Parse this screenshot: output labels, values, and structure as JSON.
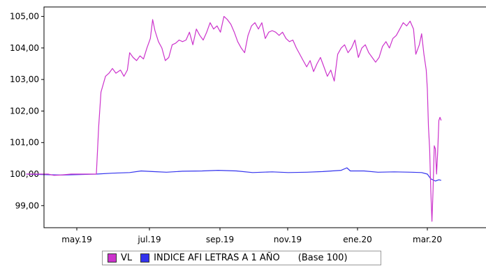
{
  "chart_data": {
    "type": "line",
    "xlabel": "",
    "ylabel": "",
    "ylim": [
      98.3,
      105.3
    ],
    "x_ticks": [
      "may.19",
      "jul.19",
      "sep.19",
      "nov.19",
      "ene.20",
      "mar.20"
    ],
    "y_ticks": [
      "99,00",
      "100,00",
      "101,00",
      "102,00",
      "103,00",
      "104,00",
      "105,00"
    ],
    "legend_placement": "bottom",
    "legend_note": "(Base 100)",
    "grid": false,
    "series": [
      {
        "name": "VL",
        "color": "#cc33cc",
        "points": [
          [
            "2019-04-01",
            100.0
          ],
          [
            "2019-04-20",
            100.0
          ],
          [
            "2019-04-25",
            99.96
          ],
          [
            "2019-05-01",
            99.97
          ],
          [
            "2019-05-10",
            100.0
          ],
          [
            "2019-05-20",
            100.0
          ],
          [
            "2019-06-01",
            100.0
          ],
          [
            "2019-06-03",
            101.5
          ],
          [
            "2019-06-05",
            102.6
          ],
          [
            "2019-06-09",
            103.1
          ],
          [
            "2019-06-12",
            103.2
          ],
          [
            "2019-06-15",
            103.35
          ],
          [
            "2019-06-18",
            103.2
          ],
          [
            "2019-06-22",
            103.3
          ],
          [
            "2019-06-25",
            103.1
          ],
          [
            "2019-06-28",
            103.3
          ],
          [
            "2019-06-30",
            103.85
          ],
          [
            "2019-07-03",
            103.7
          ],
          [
            "2019-07-06",
            103.6
          ],
          [
            "2019-07-09",
            103.75
          ],
          [
            "2019-07-12",
            103.65
          ],
          [
            "2019-07-15",
            104.0
          ],
          [
            "2019-07-18",
            104.3
          ],
          [
            "2019-07-20",
            104.9
          ],
          [
            "2019-07-22",
            104.55
          ],
          [
            "2019-07-25",
            104.2
          ],
          [
            "2019-07-28",
            104.0
          ],
          [
            "2019-07-31",
            103.6
          ],
          [
            "2019-08-03",
            103.7
          ],
          [
            "2019-08-06",
            104.1
          ],
          [
            "2019-08-09",
            104.15
          ],
          [
            "2019-08-12",
            104.25
          ],
          [
            "2019-08-15",
            104.2
          ],
          [
            "2019-08-18",
            104.25
          ],
          [
            "2019-08-21",
            104.5
          ],
          [
            "2019-08-24",
            104.1
          ],
          [
            "2019-08-27",
            104.6
          ],
          [
            "2019-08-30",
            104.4
          ],
          [
            "2019-09-02",
            104.25
          ],
          [
            "2019-09-05",
            104.5
          ],
          [
            "2019-09-08",
            104.8
          ],
          [
            "2019-09-11",
            104.6
          ],
          [
            "2019-09-14",
            104.7
          ],
          [
            "2019-09-17",
            104.5
          ],
          [
            "2019-09-20",
            105.0
          ],
          [
            "2019-09-23",
            104.9
          ],
          [
            "2019-09-26",
            104.75
          ],
          [
            "2019-09-29",
            104.5
          ],
          [
            "2019-10-02",
            104.2
          ],
          [
            "2019-10-05",
            104.0
          ],
          [
            "2019-10-08",
            103.85
          ],
          [
            "2019-10-11",
            104.4
          ],
          [
            "2019-10-14",
            104.7
          ],
          [
            "2019-10-17",
            104.8
          ],
          [
            "2019-10-20",
            104.6
          ],
          [
            "2019-10-23",
            104.8
          ],
          [
            "2019-10-26",
            104.3
          ],
          [
            "2019-10-29",
            104.5
          ],
          [
            "2019-11-01",
            104.55
          ],
          [
            "2019-11-04",
            104.5
          ],
          [
            "2019-11-07",
            104.4
          ],
          [
            "2019-11-10",
            104.5
          ],
          [
            "2019-11-13",
            104.3
          ],
          [
            "2019-11-16",
            104.2
          ],
          [
            "2019-11-19",
            104.25
          ],
          [
            "2019-11-22",
            104.0
          ],
          [
            "2019-11-25",
            103.8
          ],
          [
            "2019-11-28",
            103.6
          ],
          [
            "2019-12-01",
            103.4
          ],
          [
            "2019-12-04",
            103.6
          ],
          [
            "2019-12-07",
            103.25
          ],
          [
            "2019-12-10",
            103.5
          ],
          [
            "2019-12-13",
            103.7
          ],
          [
            "2019-12-16",
            103.4
          ],
          [
            "2019-12-19",
            103.1
          ],
          [
            "2019-12-22",
            103.3
          ],
          [
            "2019-12-25",
            102.95
          ],
          [
            "2019-12-28",
            103.8
          ],
          [
            "2019-12-31",
            104.0
          ],
          [
            "2020-01-03",
            104.1
          ],
          [
            "2020-01-06",
            103.85
          ],
          [
            "2020-01-09",
            104.0
          ],
          [
            "2020-01-12",
            104.25
          ],
          [
            "2020-01-15",
            103.7
          ],
          [
            "2020-01-18",
            104.0
          ],
          [
            "2020-01-21",
            104.1
          ],
          [
            "2020-01-24",
            103.85
          ],
          [
            "2020-01-27",
            103.7
          ],
          [
            "2020-01-30",
            103.55
          ],
          [
            "2020-02-02",
            103.7
          ],
          [
            "2020-02-05",
            104.05
          ],
          [
            "2020-02-08",
            104.2
          ],
          [
            "2020-02-11",
            104.0
          ],
          [
            "2020-02-14",
            104.3
          ],
          [
            "2020-02-17",
            104.4
          ],
          [
            "2020-02-20",
            104.6
          ],
          [
            "2020-02-23",
            104.8
          ],
          [
            "2020-02-26",
            104.7
          ],
          [
            "2020-02-29",
            104.85
          ],
          [
            "2020-03-03",
            104.6
          ],
          [
            "2020-03-05",
            103.8
          ],
          [
            "2020-03-08",
            104.1
          ],
          [
            "2020-03-10",
            104.45
          ],
          [
            "2020-03-12",
            103.8
          ],
          [
            "2020-03-14",
            103.3
          ],
          [
            "2020-03-15",
            102.7
          ],
          [
            "2020-03-16",
            101.5
          ],
          [
            "2020-03-17",
            100.8
          ],
          [
            "2020-03-18",
            99.5
          ],
          [
            "2020-03-19",
            98.5
          ],
          [
            "2020-03-20",
            99.5
          ],
          [
            "2020-03-21",
            100.9
          ],
          [
            "2020-03-22",
            100.8
          ],
          [
            "2020-03-23",
            100.0
          ],
          [
            "2020-03-24",
            100.7
          ],
          [
            "2020-03-25",
            101.7
          ],
          [
            "2020-03-26",
            101.8
          ],
          [
            "2020-03-27",
            101.7
          ]
        ]
      },
      {
        "name": "INDICE AFI LETRAS A 1 AÑO",
        "color": "#3333ee",
        "points": [
          [
            "2019-04-01",
            100.0
          ],
          [
            "2019-05-01",
            99.97
          ],
          [
            "2019-06-01",
            100.0
          ],
          [
            "2019-06-15",
            100.03
          ],
          [
            "2019-06-30",
            100.05
          ],
          [
            "2019-07-10",
            100.1
          ],
          [
            "2019-07-20",
            100.08
          ],
          [
            "2019-08-01",
            100.06
          ],
          [
            "2019-08-15",
            100.09
          ],
          [
            "2019-09-01",
            100.1
          ],
          [
            "2019-09-15",
            100.12
          ],
          [
            "2019-10-01",
            100.1
          ],
          [
            "2019-10-15",
            100.05
          ],
          [
            "2019-11-01",
            100.07
          ],
          [
            "2019-11-15",
            100.05
          ],
          [
            "2019-12-01",
            100.06
          ],
          [
            "2019-12-15",
            100.08
          ],
          [
            "2019-12-31",
            100.12
          ],
          [
            "2020-01-05",
            100.2
          ],
          [
            "2020-01-08",
            100.1
          ],
          [
            "2020-01-20",
            100.1
          ],
          [
            "2020-02-01",
            100.06
          ],
          [
            "2020-02-15",
            100.07
          ],
          [
            "2020-03-01",
            100.06
          ],
          [
            "2020-03-10",
            100.05
          ],
          [
            "2020-03-15",
            100.0
          ],
          [
            "2020-03-18",
            99.85
          ],
          [
            "2020-03-22",
            99.78
          ],
          [
            "2020-03-25",
            99.82
          ],
          [
            "2020-03-27",
            99.8
          ]
        ]
      }
    ]
  }
}
